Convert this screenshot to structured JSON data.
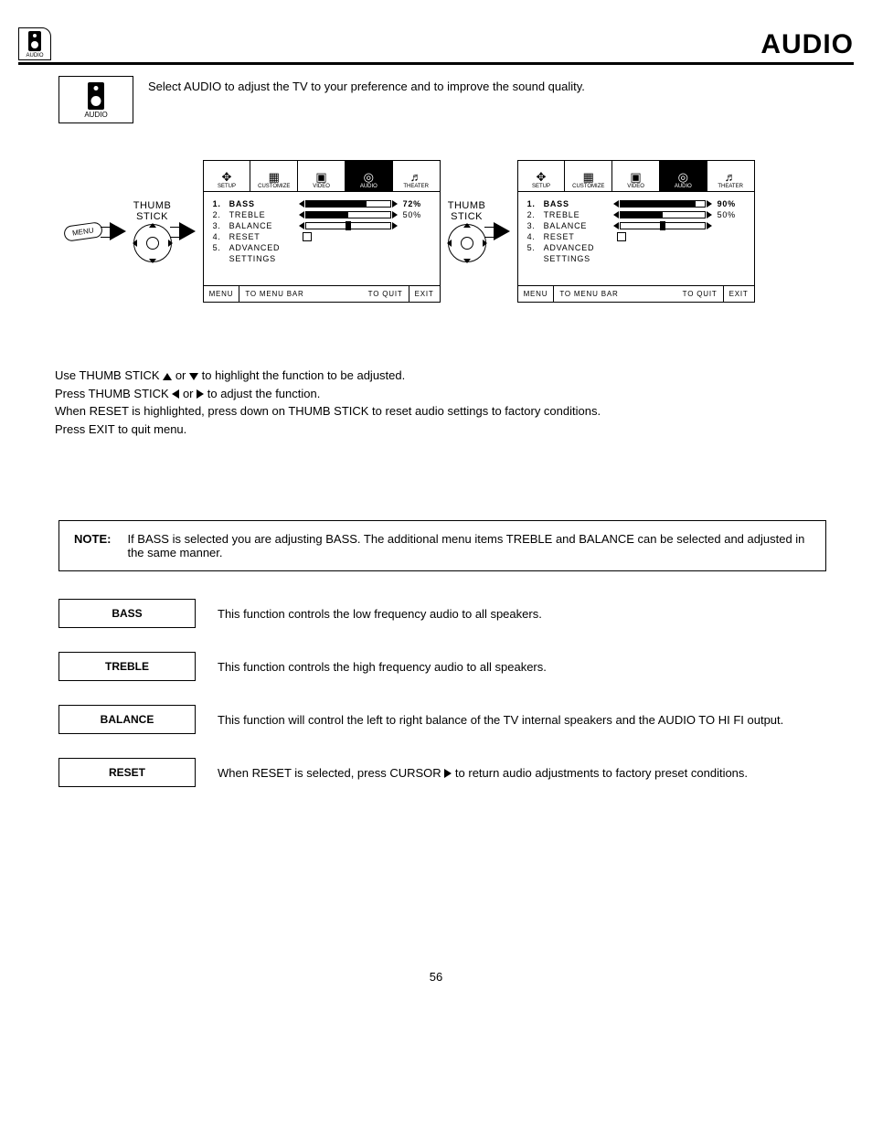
{
  "page": {
    "title": "AUDIO",
    "header_icon_label": "AUDIO",
    "intro_icon_label": "AUDIO",
    "intro_text": "Select AUDIO to adjust the TV to your preference and to improve the sound quality.",
    "page_number": "56"
  },
  "diagram": {
    "menu_key": "MENU",
    "thumb_label_1": "THUMB",
    "thumb_label_2": "STICK",
    "tabs": [
      "SETUP",
      "CUSTOMIZE",
      "VIDEO",
      "AUDIO",
      "THEATER"
    ],
    "tab_glyphs": [
      "✥",
      "▦",
      "▣",
      "◎",
      "♬"
    ],
    "active_tab_index": 3,
    "screens": [
      {
        "items": [
          {
            "n": "1.",
            "label": "BASS",
            "type": "slider",
            "fill": 72,
            "pct": "72%",
            "bold": true
          },
          {
            "n": "2.",
            "label": "TREBLE",
            "type": "slider",
            "fill": 50,
            "pct": "50%"
          },
          {
            "n": "3.",
            "label": "BALANCE",
            "type": "balance"
          },
          {
            "n": "4.",
            "label": "RESET",
            "type": "check"
          },
          {
            "n": "5.",
            "label": "ADVANCED",
            "type": "none"
          },
          {
            "n": "",
            "label": "SETTINGS",
            "type": "none"
          }
        ]
      },
      {
        "items": [
          {
            "n": "1.",
            "label": "BASS",
            "type": "slider",
            "fill": 90,
            "pct": "90%",
            "bold": true
          },
          {
            "n": "2.",
            "label": "TREBLE",
            "type": "slider",
            "fill": 50,
            "pct": "50%"
          },
          {
            "n": "3.",
            "label": "BALANCE",
            "type": "balance"
          },
          {
            "n": "4.",
            "label": "RESET",
            "type": "check"
          },
          {
            "n": "5.",
            "label": "ADVANCED",
            "type": "none"
          },
          {
            "n": "",
            "label": "SETTINGS",
            "type": "none"
          }
        ]
      }
    ],
    "footer": {
      "menu": "MENU",
      "to_bar": "TO MENU BAR",
      "to_quit": "TO QUIT",
      "exit": "EXIT"
    }
  },
  "instructions": {
    "l1a": "Use THUMB STICK ",
    "l1b": " or ",
    "l1c": " to highlight the function to be adjusted.",
    "l2a": "Press THUMB STICK ",
    "l2b": " or ",
    "l2c": " to adjust the function.",
    "l3": "When RESET is highlighted, press down on THUMB STICK to reset audio settings to factory conditions.",
    "l4": "Press EXIT to quit menu."
  },
  "note": {
    "label": "NOTE:",
    "text": "If BASS is selected you are adjusting BASS.  The additional menu items TREBLE and BALANCE can be selected and adjusted in the same manner."
  },
  "defs": [
    {
      "term": "BASS",
      "text": "This function controls the low frequency audio to all speakers."
    },
    {
      "term": "TREBLE",
      "text": "This function controls the high frequency audio to all speakers."
    },
    {
      "term": "BALANCE",
      "text": "This function will control the left to right balance of the TV internal speakers and the AUDIO TO HI FI output."
    },
    {
      "term": "RESET",
      "text_a": "When RESET is selected, press CURSOR ",
      "text_b": " to return audio adjustments to factory preset conditions."
    }
  ]
}
